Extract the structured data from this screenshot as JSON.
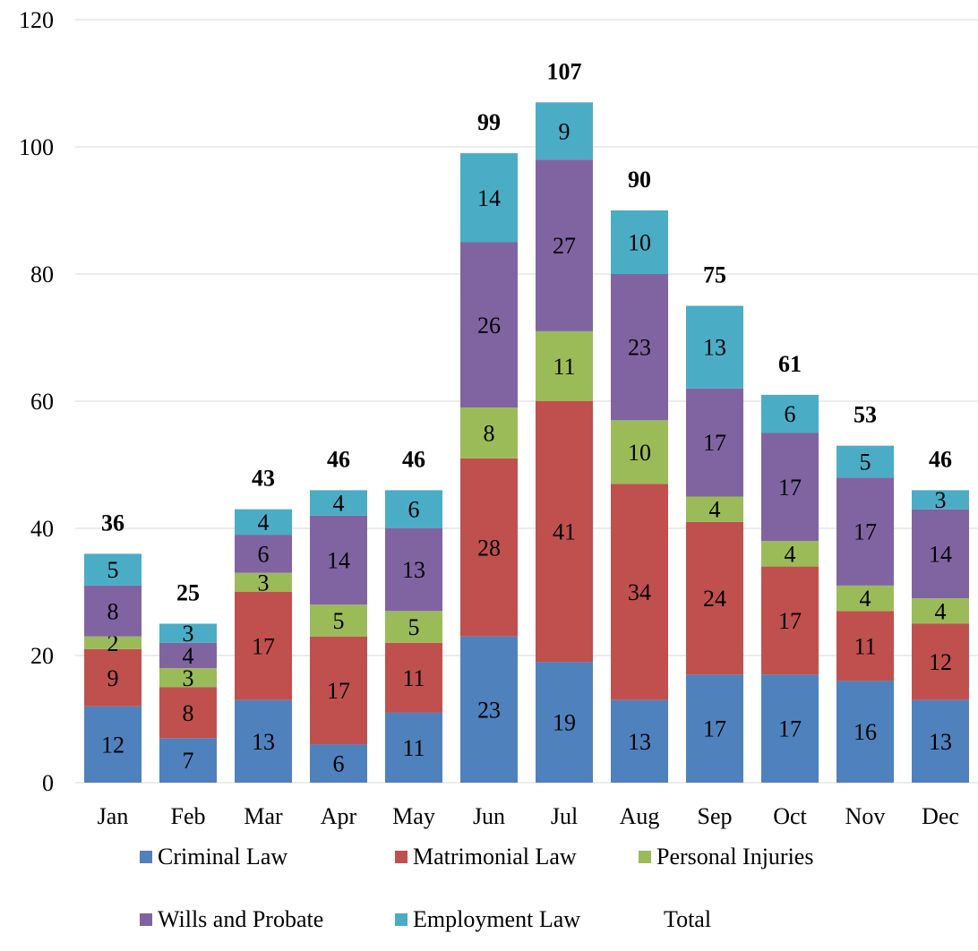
{
  "chart_data": {
    "type": "bar",
    "stacked": true,
    "categories": [
      "Jan",
      "Feb",
      "Mar",
      "Apr",
      "May",
      "Jun",
      "Jul",
      "Aug",
      "Sep",
      "Oct",
      "Nov",
      "Dec"
    ],
    "series": [
      {
        "name": "Criminal Law",
        "color": "#4f81bd",
        "values": [
          12,
          7,
          13,
          6,
          11,
          23,
          19,
          13,
          17,
          17,
          16,
          13
        ]
      },
      {
        "name": "Matrimonial Law",
        "color": "#c0504d",
        "values": [
          9,
          8,
          17,
          17,
          11,
          28,
          41,
          34,
          24,
          17,
          11,
          12
        ]
      },
      {
        "name": "Personal Injuries",
        "color": "#9bbb59",
        "values": [
          2,
          3,
          3,
          5,
          5,
          8,
          11,
          10,
          4,
          4,
          4,
          4
        ]
      },
      {
        "name": "Wills and Probate",
        "color": "#8064a2",
        "values": [
          8,
          4,
          6,
          14,
          13,
          26,
          27,
          23,
          17,
          17,
          17,
          14
        ]
      },
      {
        "name": "Employment Law",
        "color": "#4bacc6",
        "values": [
          5,
          3,
          4,
          4,
          6,
          14,
          9,
          10,
          13,
          6,
          5,
          3
        ]
      }
    ],
    "totals": {
      "name": "Total",
      "values": [
        36,
        25,
        43,
        46,
        46,
        99,
        107,
        90,
        75,
        61,
        53,
        46
      ]
    },
    "ylim": [
      0,
      120
    ],
    "yticks": [
      0,
      20,
      40,
      60,
      80,
      100,
      120
    ],
    "grid": true,
    "legend_position": "bottom"
  }
}
